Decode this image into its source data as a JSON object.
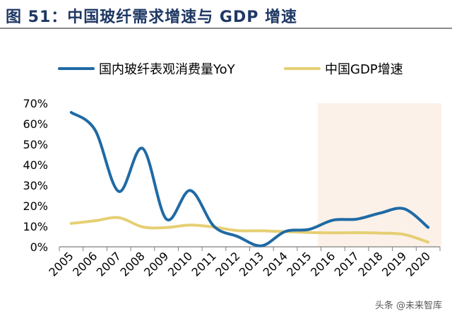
{
  "title": "图 51：中国玻纤需求增速与 GDP 增速",
  "watermark": "头条 @未来智库",
  "chart_data": {
    "type": "line",
    "categories": [
      "2005",
      "2006",
      "2007",
      "2008",
      "2009",
      "2010",
      "2011",
      "2012",
      "2013",
      "2014",
      "2015",
      "2016",
      "2017",
      "2018",
      "2019",
      "2020"
    ],
    "series": [
      {
        "name": "国内玻纤表观消费量YoY",
        "color": "#1f6aa5",
        "values": [
          65.5,
          57,
          27,
          48,
          13.5,
          27.5,
          10,
          5,
          0.5,
          7.5,
          8.5,
          13,
          13.5,
          16.5,
          18.5,
          9.5
        ]
      },
      {
        "name": "中国GDP增速",
        "color": "#e6cf73",
        "values": [
          11.4,
          12.7,
          14.2,
          9.7,
          9.4,
          10.6,
          9.6,
          7.9,
          7.8,
          7.4,
          7.0,
          6.8,
          6.9,
          6.7,
          6.0,
          2.3
        ]
      }
    ],
    "yticks": [
      "0%",
      "10%",
      "20%",
      "30%",
      "40%",
      "50%",
      "60%",
      "70%"
    ],
    "ylim": [
      0,
      70
    ],
    "shaded_from": "2015",
    "shaded_to": "2020",
    "shade_color": "#fbf1e8",
    "legend_position": "top",
    "xlabel": "",
    "ylabel": ""
  }
}
